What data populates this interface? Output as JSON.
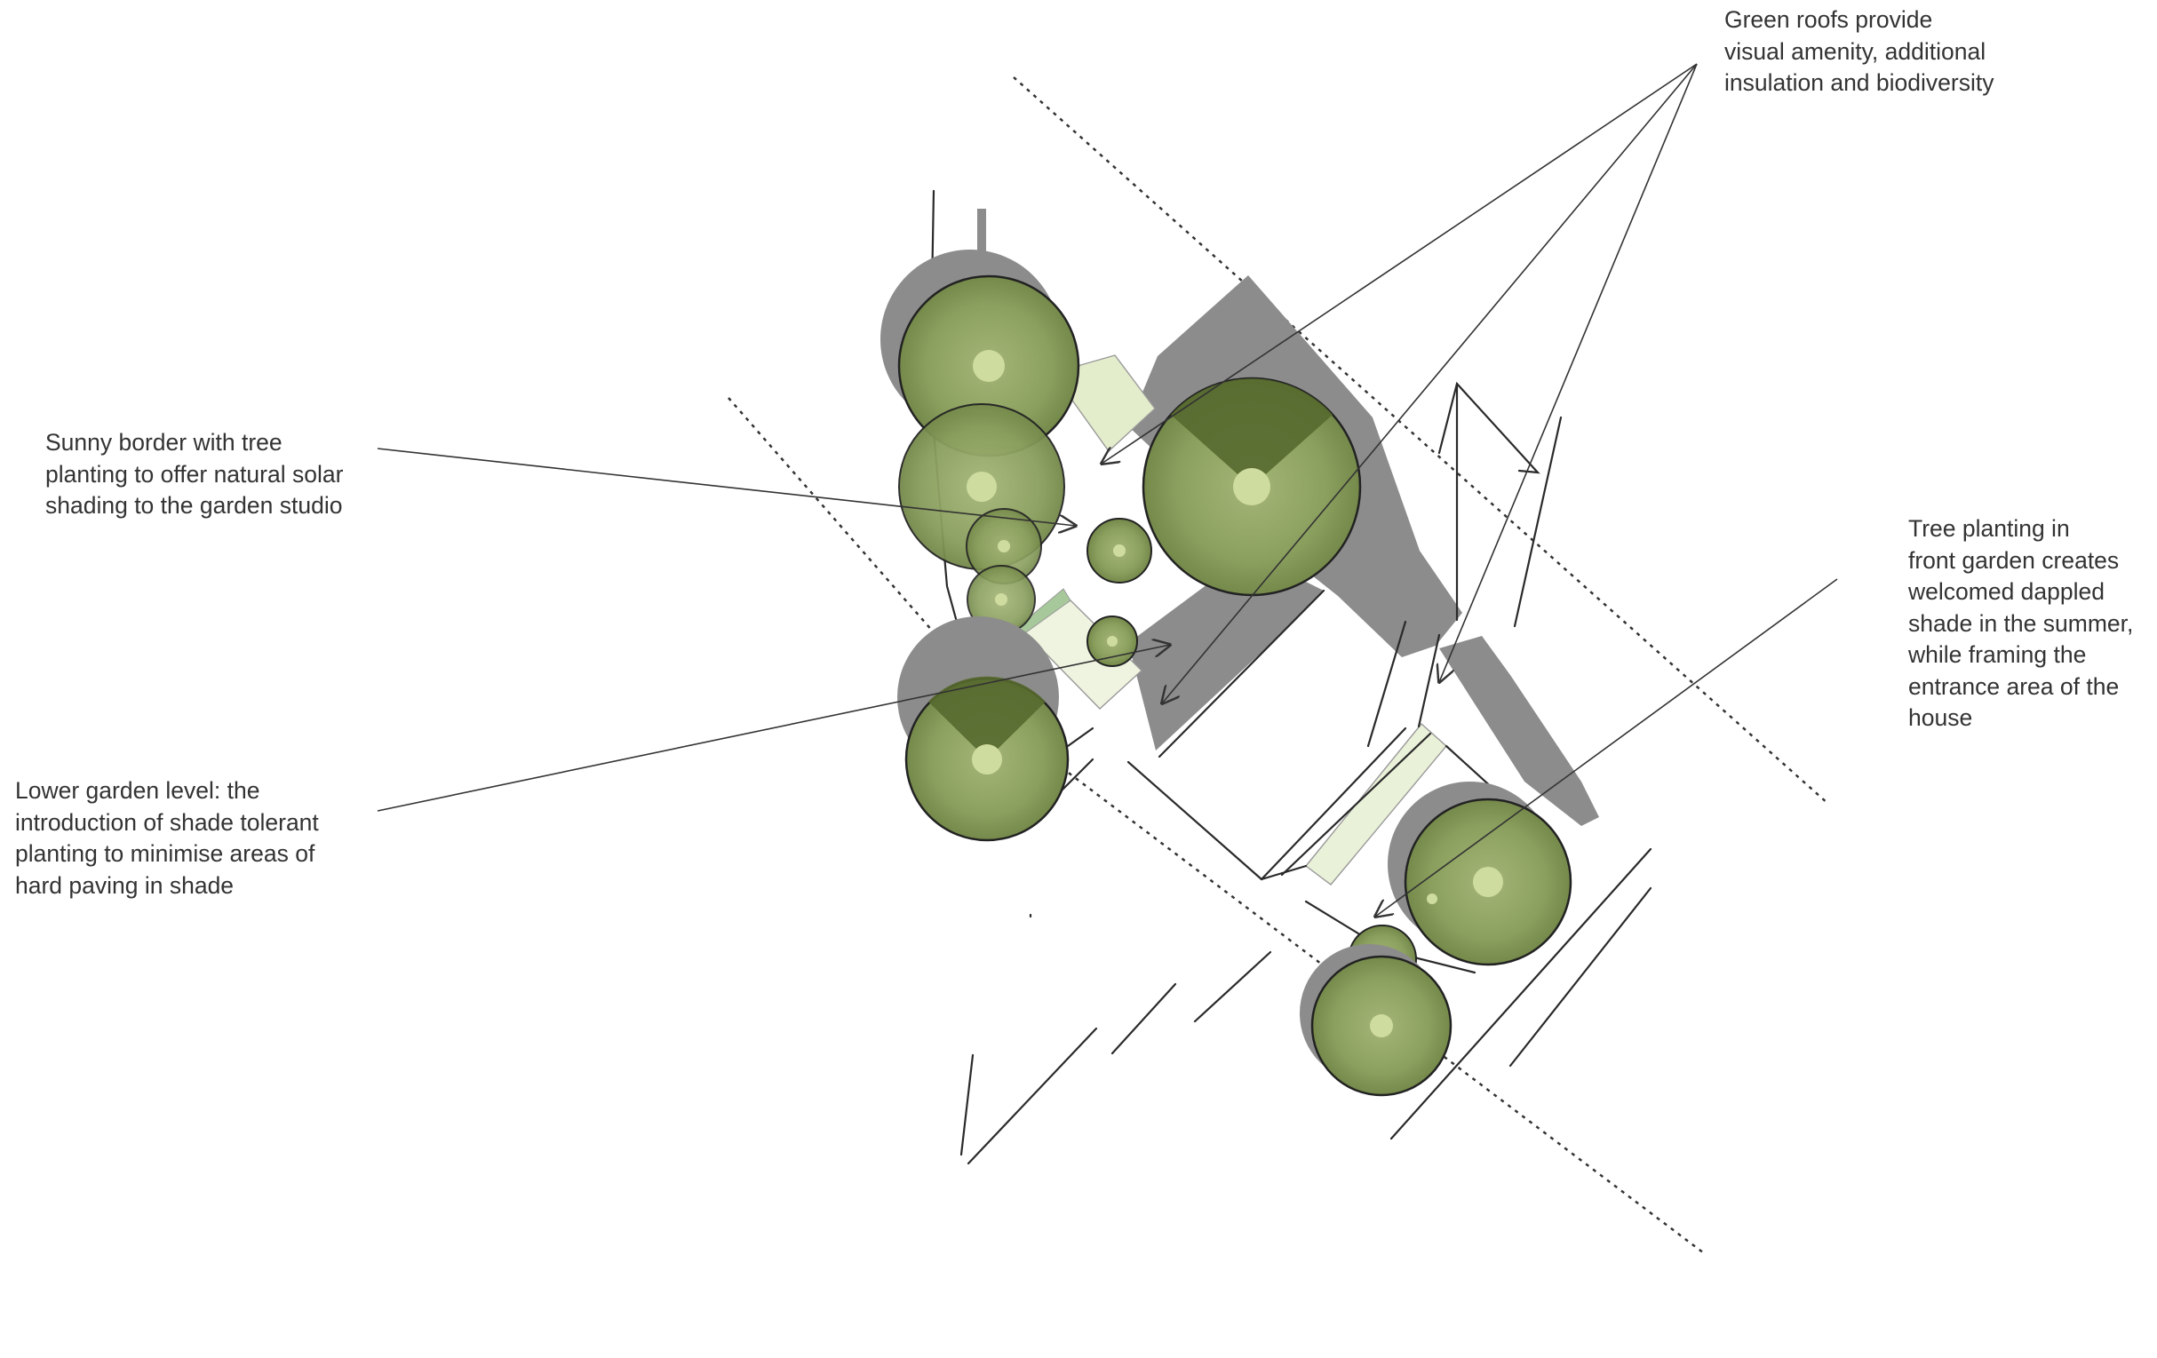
{
  "annotations": {
    "green_roofs": {
      "lines": [
        "Green roofs provide",
        "visual amenity, additional",
        "insulation and biodiversity"
      ]
    },
    "sunny_border": {
      "lines": [
        "Sunny border with tree",
        "planting to offer natural solar",
        "shading to the garden studio"
      ]
    },
    "lower_garden": {
      "lines": [
        "Lower garden level: the",
        "introduction of shade tolerant",
        "planting to minimise areas of",
        "hard paving in shade"
      ]
    },
    "tree_planting": {
      "lines": [
        "Tree planting in",
        "front garden creates",
        "welcomed dappled",
        "shade in the summer,",
        "while framing the",
        "entrance area of the",
        "house"
      ]
    }
  },
  "colors": {
    "text": "#333333",
    "leader_line": "#333333",
    "tree_canopy": "#8a9f5e",
    "tree_canopy_dark": "#586b35",
    "tree_center": "#cfdca0",
    "shadow": "#8c8c8c",
    "green_roof": "#e3edcb",
    "ink": "#2a2a2a"
  },
  "icons": [
    "tree-canopy",
    "leader-arrow"
  ]
}
